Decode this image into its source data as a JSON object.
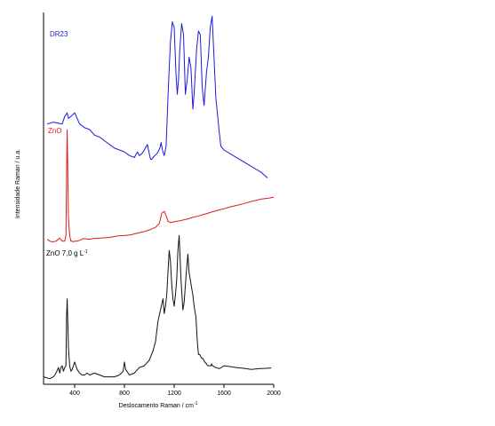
{
  "chart_data": {
    "type": "line",
    "xlabel": "Deslocamento Raman / cm",
    "xlabel_sup": "-1",
    "ylabel": "Intensidade Raman / u.a.",
    "xlim": [
      150,
      2000
    ],
    "ylim": [
      0,
      100
    ],
    "x_ticks": [
      400,
      800,
      1200,
      1600,
      2000
    ],
    "x_tick_labels": [
      "400",
      "800",
      "1200",
      "1600",
      "2000"
    ],
    "grid": false,
    "series": [
      {
        "name": "DR23",
        "color": "#1a1adf",
        "x": [
          180,
          230,
          300,
          320,
          340,
          350,
          370,
          400,
          440,
          480,
          520,
          560,
          600,
          640,
          680,
          720,
          760,
          800,
          840,
          880,
          905,
          920,
          940,
          960,
          985,
          1000,
          1010,
          1020,
          1030,
          1045,
          1060,
          1070,
          1085,
          1095,
          1105,
          1120,
          1135,
          1150,
          1160,
          1170,
          1185,
          1200,
          1215,
          1225,
          1235,
          1245,
          1260,
          1275,
          1290,
          1305,
          1320,
          1335,
          1350,
          1360,
          1380,
          1395,
          1410,
          1425,
          1440,
          1460,
          1475,
          1490,
          1505,
          1520,
          1535,
          1550,
          1560,
          1575,
          1600,
          1650,
          1700,
          1750,
          1800,
          1850,
          1900,
          1950
        ],
        "y": [
          70,
          70.5,
          70,
          72,
          73,
          71.5,
          72,
          73,
          70,
          69,
          68.5,
          67,
          66.5,
          65.5,
          64.5,
          63.5,
          63,
          62.5,
          61.5,
          61,
          62.5,
          61.5,
          62,
          63,
          64.5,
          62,
          60.5,
          60.5,
          61,
          61.5,
          62,
          62.5,
          63.5,
          65,
          63,
          61.5,
          64,
          77,
          85,
          92,
          97.5,
          96,
          83,
          78,
          82,
          90,
          97,
          94,
          78,
          82,
          88,
          85,
          74,
          78,
          90,
          95,
          94,
          80,
          75,
          84,
          88,
          96,
          99,
          88,
          77,
          72,
          68.5,
          64,
          63,
          62,
          61,
          60,
          59,
          58,
          57,
          55.5
        ]
      },
      {
        "name": "ZnO",
        "color": "#e01818",
        "x": [
          180,
          200,
          220,
          250,
          280,
          300,
          320,
          330,
          335,
          340,
          350,
          360,
          370,
          380,
          390,
          400,
          420,
          440,
          470,
          500,
          520,
          550,
          600,
          650,
          700,
          750,
          800,
          850,
          900,
          950,
          1000,
          1050,
          1080,
          1090,
          1100,
          1120,
          1140,
          1150,
          1170,
          1200,
          1250,
          1300,
          1350,
          1400,
          1450,
          1500,
          1550,
          1600,
          1650,
          1700,
          1750,
          1800,
          1850,
          1900,
          1950,
          2000
        ],
        "y": [
          39,
          38.5,
          38.3,
          38.5,
          39.3,
          38.5,
          38.5,
          40,
          56,
          68.5,
          45,
          40,
          38.5,
          38.5,
          38.3,
          38.5,
          38.5,
          38.7,
          39.2,
          39.1,
          39,
          39.2,
          39.3,
          39.4,
          39.6,
          39.9,
          40,
          40.2,
          40.6,
          41,
          41.5,
          42.2,
          43.2,
          44.5,
          46,
          46.5,
          45,
          43.8,
          43.5,
          43.7,
          44,
          44.4,
          44.9,
          45.3,
          45.8,
          46.3,
          46.8,
          47.2,
          47.7,
          48.1,
          48.5,
          49,
          49.4,
          49.8,
          50,
          50.3
        ]
      },
      {
        "name": "ZnO 7,0 g L",
        "color": "#111111",
        "x": [
          150,
          200,
          230,
          250,
          270,
          280,
          290,
          300,
          310,
          320,
          330,
          335,
          340,
          350,
          360,
          370,
          380,
          390,
          400,
          420,
          440,
          460,
          480,
          500,
          520,
          560,
          600,
          640,
          680,
          720,
          760,
          790,
          800,
          810,
          820,
          840,
          880,
          920,
          960,
          1000,
          1030,
          1050,
          1070,
          1090,
          1110,
          1120,
          1130,
          1140,
          1150,
          1160,
          1170,
          1180,
          1190,
          1200,
          1210,
          1220,
          1230,
          1240,
          1255,
          1270,
          1280,
          1295,
          1310,
          1320,
          1335,
          1350,
          1360,
          1375,
          1385,
          1395,
          1405,
          1420,
          1430,
          1445,
          1460,
          1470,
          1480,
          1495,
          1500,
          1505,
          1510,
          1520,
          1530,
          1540,
          1560,
          1580,
          1600,
          1640,
          1700,
          1760,
          1820,
          1880,
          1940,
          1980
        ],
        "y": [
          2,
          1.5,
          2,
          3,
          4.5,
          3,
          4.5,
          5,
          3.5,
          4.5,
          5,
          18,
          23,
          10,
          5,
          3.5,
          4,
          5,
          6,
          4,
          3,
          2.5,
          2.5,
          3,
          2.5,
          3,
          2.5,
          2,
          2,
          2,
          2.5,
          3.5,
          6,
          4,
          3.5,
          2.5,
          3,
          4.5,
          5,
          6.5,
          9,
          11.5,
          17,
          20,
          23,
          19,
          21,
          24,
          30,
          36,
          33,
          27,
          23,
          21,
          24,
          28,
          36,
          40,
          28,
          20,
          22,
          29,
          35,
          30,
          27,
          24,
          21,
          18,
          12,
          8,
          8,
          7,
          7,
          6,
          5.5,
          5,
          5,
          5,
          5.5,
          5,
          5,
          4.8,
          4.5,
          4.5,
          4.2,
          4.5,
          5,
          4.8,
          4.5,
          4.3,
          4,
          4.2,
          4.3,
          4.4
        ]
      }
    ],
    "labels": [
      {
        "series": 0,
        "text": "DR23"
      },
      {
        "series": 1,
        "text": "ZnO"
      },
      {
        "series": 2,
        "text": "ZnO 7,0 g L",
        "sup": "-1"
      }
    ]
  }
}
